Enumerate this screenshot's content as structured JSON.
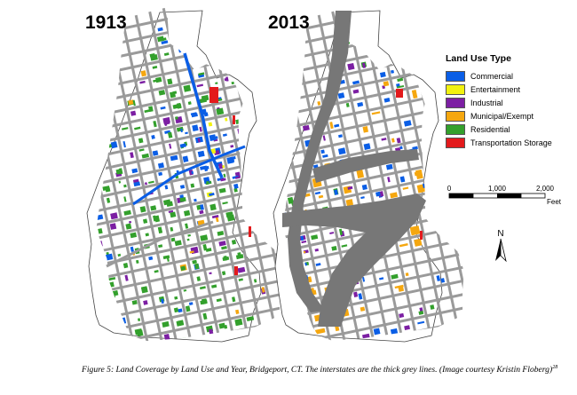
{
  "maps": [
    {
      "year_label": "1913"
    },
    {
      "year_label": "2013"
    }
  ],
  "legend": {
    "title": "Land Use Type",
    "items": [
      {
        "label": "Commercial",
        "color": "#0a5ee6"
      },
      {
        "label": "Entertainment",
        "color": "#f2f20f"
      },
      {
        "label": "Industrial",
        "color": "#7c1fa3"
      },
      {
        "label": "Municipal/Exempt",
        "color": "#f5a70f"
      },
      {
        "label": "Residential",
        "color": "#33a02c"
      },
      {
        "label": "Transportation Storage",
        "color": "#e31a1c"
      }
    ]
  },
  "scale_bar": {
    "ticks": [
      "0",
      "1,000",
      "2,000"
    ],
    "unit": "Feet"
  },
  "north_arrow": {
    "label": "N"
  },
  "colors": {
    "interstate": "#777777",
    "street": "#9a9a9a",
    "outline": "#444444"
  },
  "caption": {
    "text": "Figure 5: Land Coverage by Land Use and Year, Bridgeport, CT. The interstates are the thick grey lines.  (Image courtesy Kristin Floberg)",
    "superscript": "28"
  }
}
